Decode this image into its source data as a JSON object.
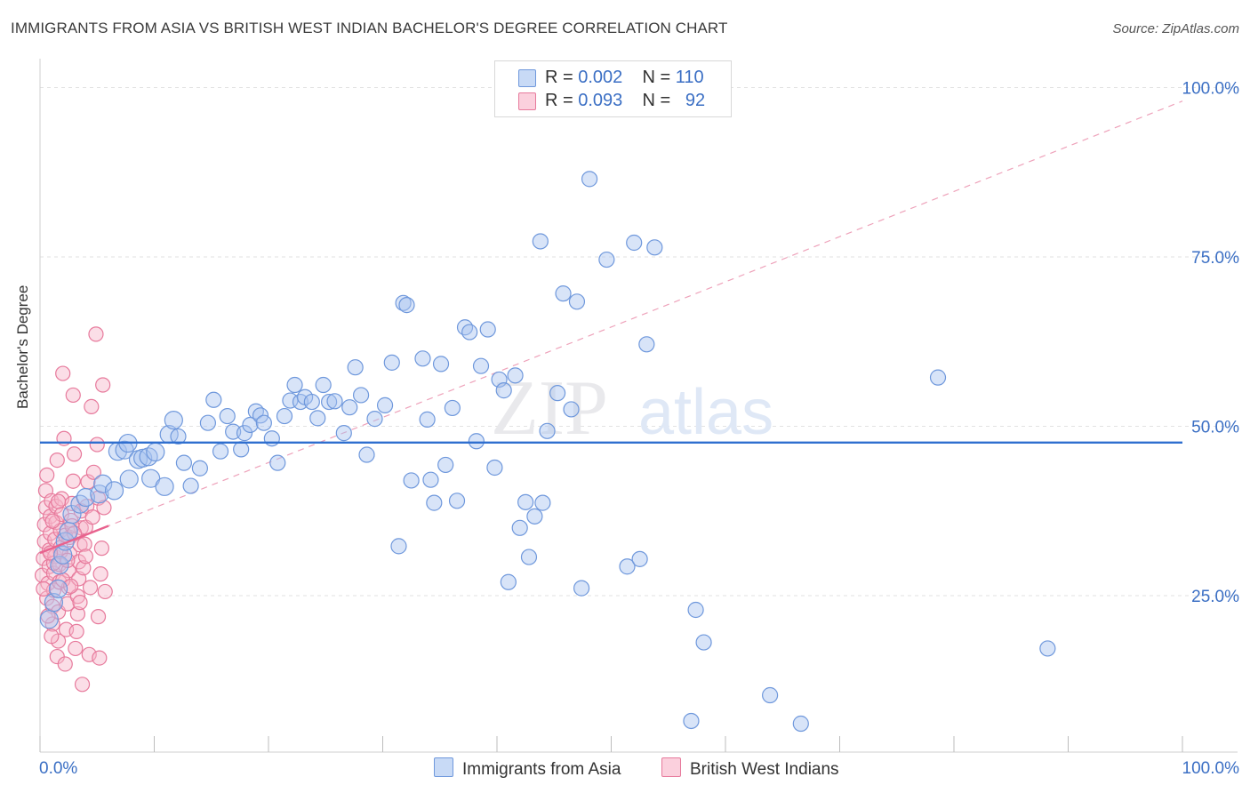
{
  "title": "IMMIGRANTS FROM ASIA VS BRITISH WEST INDIAN BACHELOR'S DEGREE CORRELATION CHART",
  "source": "Source: ZipAtlas.com",
  "watermark": {
    "zip": "ZIP",
    "atlas": "atlas"
  },
  "legend": {
    "r_label": "R =",
    "n_label": "N =",
    "rows": [
      {
        "r": "0.002",
        "n": "110",
        "color": "#a9c4ef"
      },
      {
        "r": "0.093",
        "n": "92",
        "color": "#f6b6c9"
      }
    ]
  },
  "bottom_legend": {
    "asia": "Immigrants from Asia",
    "bwi": "British West Indians"
  },
  "colors": {
    "asia_fill": "#a9c4ef",
    "asia_stroke": "#6f98dc",
    "asia_line": "#2f6fcf",
    "bwi_fill": "#f6b6c9",
    "bwi_stroke": "#e77a9c",
    "bwi_line": "#e8628e",
    "axis_label": "#3b6fc4",
    "grid": "#e2e2e2"
  },
  "chart_data": {
    "type": "scatter",
    "title": "IMMIGRANTS FROM ASIA VS BRITISH WEST INDIAN BACHELOR'S DEGREE CORRELATION CHART",
    "xlabel": "",
    "ylabel": "Bachelor's Degree",
    "xlim": [
      0,
      100
    ],
    "ylim": [
      0,
      105
    ],
    "x_tick_labels": [
      "0.0%",
      "100.0%"
    ],
    "y_ticks": [
      25,
      50,
      75,
      100
    ],
    "y_tick_labels": [
      "25.0%",
      "50.0%",
      "75.0%",
      "100.0%"
    ],
    "series": [
      {
        "name": "Immigrants from Asia",
        "R": 0.002,
        "N": 110,
        "trend": {
          "type": "solid",
          "x": [
            0,
            100
          ],
          "y": [
            47.6,
            47.6
          ]
        },
        "points": [
          [
            0.8,
            21.5
          ],
          [
            1.2,
            24
          ],
          [
            1.6,
            26
          ],
          [
            1.7,
            29.5
          ],
          [
            2.0,
            31
          ],
          [
            2.2,
            33
          ],
          [
            2.5,
            34.5
          ],
          [
            2.8,
            37
          ],
          [
            3.5,
            38.5
          ],
          [
            4.0,
            39.5
          ],
          [
            5.2,
            40
          ],
          [
            5.5,
            41.5
          ],
          [
            6.5,
            40.5
          ],
          [
            6.8,
            46.3
          ],
          [
            7.4,
            46.5
          ],
          [
            7.7,
            47.5
          ],
          [
            7.8,
            42.2
          ],
          [
            8.6,
            45.1
          ],
          [
            9.0,
            45.3
          ],
          [
            9.5,
            45.5
          ],
          [
            9.7,
            42.3
          ],
          [
            10.1,
            46.2
          ],
          [
            10.9,
            41.1
          ],
          [
            11.3,
            48.8
          ],
          [
            11.7,
            50.9
          ],
          [
            12.1,
            48.5
          ],
          [
            12.6,
            44.6
          ],
          [
            13.2,
            41.2
          ],
          [
            14.0,
            43.8
          ],
          [
            14.7,
            50.5
          ],
          [
            15.2,
            53.9
          ],
          [
            15.8,
            46.3
          ],
          [
            16.4,
            51.5
          ],
          [
            16.9,
            49.2
          ],
          [
            17.6,
            46.6
          ],
          [
            17.9,
            49.0
          ],
          [
            18.4,
            50.2
          ],
          [
            18.9,
            52.2
          ],
          [
            19.3,
            51.6
          ],
          [
            19.6,
            50.5
          ],
          [
            20.3,
            48.2
          ],
          [
            20.8,
            44.6
          ],
          [
            21.4,
            51.5
          ],
          [
            21.9,
            53.8
          ],
          [
            22.3,
            56.1
          ],
          [
            22.8,
            53.6
          ],
          [
            23.2,
            54.3
          ],
          [
            23.8,
            53.6
          ],
          [
            24.3,
            51.2
          ],
          [
            24.8,
            56.1
          ],
          [
            25.3,
            53.6
          ],
          [
            25.8,
            53.7
          ],
          [
            26.6,
            49.0
          ],
          [
            27.1,
            52.8
          ],
          [
            27.6,
            58.7
          ],
          [
            28.1,
            54.6
          ],
          [
            28.6,
            45.8
          ],
          [
            29.3,
            51.1
          ],
          [
            30.2,
            53.1
          ],
          [
            30.8,
            59.4
          ],
          [
            31.4,
            32.3
          ],
          [
            31.8,
            68.2
          ],
          [
            32.1,
            67.9
          ],
          [
            32.5,
            42.0
          ],
          [
            33.5,
            60.0
          ],
          [
            33.9,
            51.0
          ],
          [
            34.2,
            42.1
          ],
          [
            34.5,
            38.7
          ],
          [
            35.1,
            59.2
          ],
          [
            35.5,
            44.3
          ],
          [
            36.1,
            52.7
          ],
          [
            36.5,
            39.0
          ],
          [
            37.2,
            64.6
          ],
          [
            37.6,
            63.9
          ],
          [
            38.2,
            47.8
          ],
          [
            38.6,
            58.9
          ],
          [
            39.2,
            64.3
          ],
          [
            39.8,
            43.9
          ],
          [
            40.2,
            56.9
          ],
          [
            40.6,
            55.3
          ],
          [
            41.0,
            27.0
          ],
          [
            41.6,
            57.5
          ],
          [
            42.0,
            35.0
          ],
          [
            42.5,
            38.8
          ],
          [
            42.8,
            30.7
          ],
          [
            43.3,
            36.7
          ],
          [
            43.8,
            77.3
          ],
          [
            44.0,
            38.7
          ],
          [
            44.4,
            49.3
          ],
          [
            45.3,
            54.9
          ],
          [
            45.8,
            69.6
          ],
          [
            46.5,
            52.5
          ],
          [
            47.0,
            68.4
          ],
          [
            47.4,
            26.1
          ],
          [
            48.1,
            86.5
          ],
          [
            49.6,
            74.6
          ],
          [
            51.4,
            29.3
          ],
          [
            52.0,
            77.1
          ],
          [
            52.5,
            30.4
          ],
          [
            53.1,
            62.1
          ],
          [
            53.8,
            76.4
          ],
          [
            57.0,
            6.5
          ],
          [
            57.4,
            22.9
          ],
          [
            58.1,
            18.1
          ],
          [
            63.9,
            10.3
          ],
          [
            66.6,
            6.1
          ],
          [
            78.6,
            57.2
          ],
          [
            88.2,
            17.2
          ]
        ]
      },
      {
        "name": "British West Indians",
        "R": 0.093,
        "N": 92,
        "trend": {
          "type": "solid",
          "x": [
            0,
            6
          ],
          "y": [
            31.3,
            35.3
          ]
        },
        "trend_ext": {
          "type": "dashed",
          "x": [
            0,
            100
          ],
          "y": [
            31.3,
            98.0
          ]
        },
        "points": [
          [
            0.2,
            28.0
          ],
          [
            0.3,
            30.5
          ],
          [
            0.4,
            33.0
          ],
          [
            0.4,
            35.5
          ],
          [
            0.5,
            38.0
          ],
          [
            0.5,
            40.5
          ],
          [
            0.6,
            42.8
          ],
          [
            0.6,
            24.6
          ],
          [
            0.7,
            26.8
          ],
          [
            0.8,
            29.3
          ],
          [
            0.8,
            31.7
          ],
          [
            0.9,
            34.2
          ],
          [
            0.9,
            36.7
          ],
          [
            1.0,
            39.0
          ],
          [
            1.1,
            20.8
          ],
          [
            1.1,
            23.4
          ],
          [
            1.2,
            25.8
          ],
          [
            1.2,
            28.3
          ],
          [
            1.3,
            30.8
          ],
          [
            1.3,
            33.3
          ],
          [
            1.4,
            35.8
          ],
          [
            1.4,
            38.2
          ],
          [
            1.5,
            16.0
          ],
          [
            1.6,
            18.3
          ],
          [
            1.6,
            22.6
          ],
          [
            1.7,
            27.0
          ],
          [
            1.7,
            29.6
          ],
          [
            1.8,
            32.1
          ],
          [
            1.8,
            34.6
          ],
          [
            1.9,
            37.0
          ],
          [
            1.9,
            39.3
          ],
          [
            2.0,
            57.8
          ],
          [
            2.1,
            48.2
          ],
          [
            2.2,
            14.9
          ],
          [
            2.3,
            20.0
          ],
          [
            2.4,
            23.8
          ],
          [
            2.5,
            26.2
          ],
          [
            2.5,
            28.7
          ],
          [
            2.6,
            31.2
          ],
          [
            2.6,
            33.6
          ],
          [
            2.7,
            36.1
          ],
          [
            2.8,
            38.6
          ],
          [
            2.9,
            41.9
          ],
          [
            2.9,
            54.6
          ],
          [
            3.0,
            45.9
          ],
          [
            3.1,
            17.2
          ],
          [
            3.2,
            19.7
          ],
          [
            3.3,
            22.3
          ],
          [
            3.3,
            24.9
          ],
          [
            3.4,
            27.5
          ],
          [
            3.4,
            30.0
          ],
          [
            3.5,
            32.5
          ],
          [
            3.6,
            35.0
          ],
          [
            3.6,
            37.5
          ],
          [
            3.7,
            11.9
          ],
          [
            3.8,
            29.1
          ],
          [
            3.9,
            32.6
          ],
          [
            4.0,
            35.1
          ],
          [
            4.1,
            38.2
          ],
          [
            4.2,
            41.8
          ],
          [
            4.3,
            16.3
          ],
          [
            4.4,
            26.2
          ],
          [
            4.5,
            52.9
          ],
          [
            4.7,
            43.2
          ],
          [
            4.9,
            63.6
          ],
          [
            5.0,
            47.3
          ],
          [
            5.1,
            39.4
          ],
          [
            5.1,
            21.9
          ],
          [
            5.2,
            15.8
          ],
          [
            5.3,
            28.2
          ],
          [
            5.4,
            32.0
          ],
          [
            5.5,
            56.1
          ],
          [
            5.6,
            38.0
          ],
          [
            5.7,
            25.6
          ],
          [
            0.3,
            26.0
          ],
          [
            0.7,
            22.0
          ],
          [
            1.0,
            19.0
          ],
          [
            1.5,
            45.0
          ],
          [
            2.0,
            27.3
          ],
          [
            2.7,
            26.4
          ],
          [
            1.2,
            29.8
          ],
          [
            1.8,
            31.5
          ],
          [
            2.2,
            33.9
          ],
          [
            2.8,
            35.3
          ],
          [
            3.5,
            24.0
          ],
          [
            4.0,
            30.8
          ],
          [
            1.1,
            36.0
          ],
          [
            0.9,
            31.3
          ],
          [
            1.6,
            38.9
          ],
          [
            2.4,
            30.2
          ],
          [
            3.0,
            34.2
          ],
          [
            4.6,
            36.6
          ]
        ]
      }
    ]
  }
}
